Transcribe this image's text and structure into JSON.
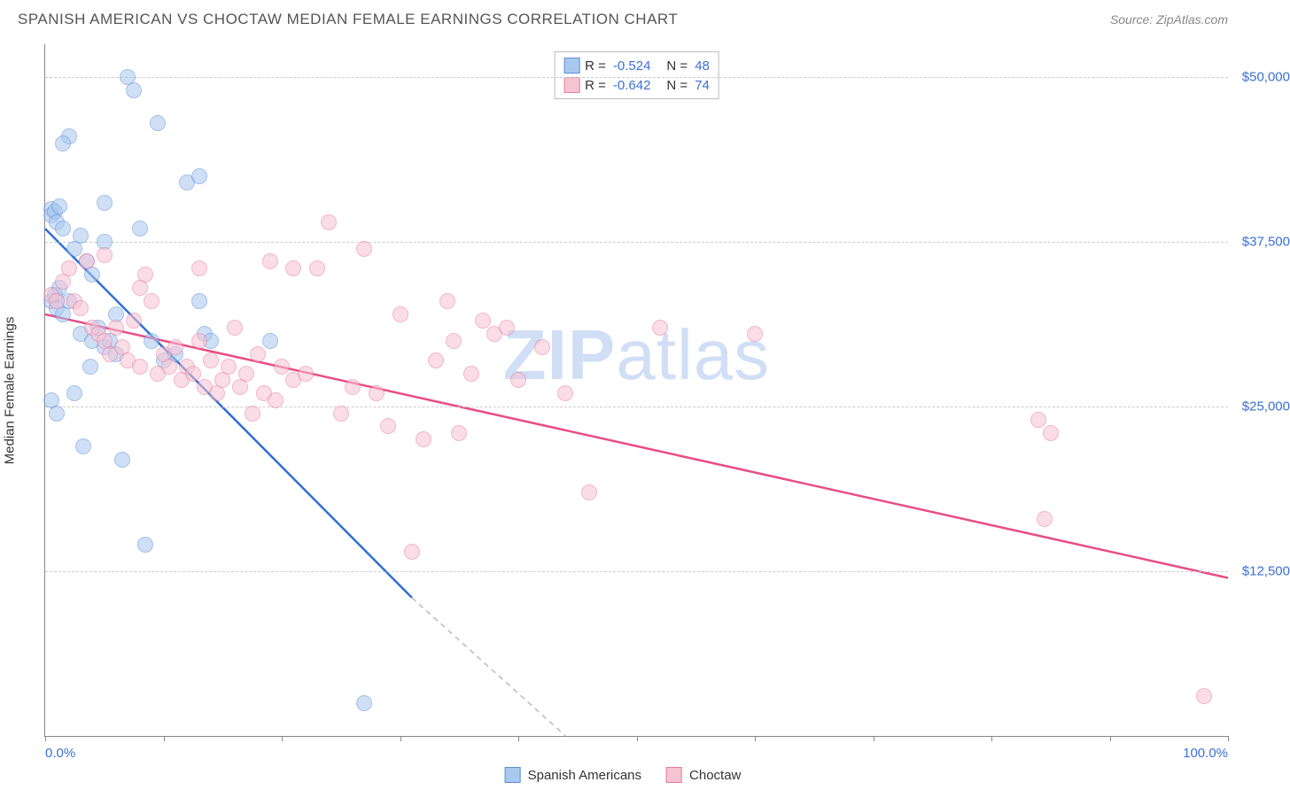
{
  "header": {
    "title": "SPANISH AMERICAN VS CHOCTAW MEDIAN FEMALE EARNINGS CORRELATION CHART",
    "source": "Source: ZipAtlas.com"
  },
  "watermark": {
    "bold": "ZIP",
    "rest": "atlas"
  },
  "chart": {
    "type": "scatter",
    "y_axis": {
      "title": "Median Female Earnings",
      "min": 0,
      "max": 52500,
      "ticks": [
        12500,
        25000,
        37500,
        50000
      ],
      "tick_labels": [
        "$12,500",
        "$25,000",
        "$37,500",
        "$50,000"
      ],
      "label_color": "#3b6fd6",
      "label_fontsize": 15
    },
    "x_axis": {
      "min": 0,
      "max": 100,
      "tick_positions": [
        0,
        10,
        20,
        30,
        40,
        50,
        60,
        70,
        80,
        90,
        100
      ],
      "left_label": "0.0%",
      "right_label": "100.0%",
      "label_color": "#3b6fd6"
    },
    "grid_color": "#cccccc",
    "background_color": "#ffffff",
    "point_radius": 9,
    "point_opacity": 0.55,
    "series": [
      {
        "name": "Spanish Americans",
        "color_fill": "#a9c8f0",
        "color_stroke": "#5a8fd6",
        "R": "-0.524",
        "N": "48",
        "trend": {
          "x1": 0,
          "y1": 38500,
          "x2": 31,
          "y2": 10500,
          "x2_ext": 44,
          "y2_ext": 0,
          "color": "#2e6fd6",
          "width": 2.5
        },
        "points": [
          [
            0.5,
            40000
          ],
          [
            0.5,
            39500
          ],
          [
            0.8,
            39800
          ],
          [
            1,
            39000
          ],
          [
            1.2,
            40200
          ],
          [
            1.5,
            38500
          ],
          [
            0.5,
            33000
          ],
          [
            0.8,
            33500
          ],
          [
            1,
            32500
          ],
          [
            1.2,
            34000
          ],
          [
            1.5,
            32000
          ],
          [
            2,
            33000
          ],
          [
            2,
            45500
          ],
          [
            2.5,
            37000
          ],
          [
            3,
            38000
          ],
          [
            3,
            30500
          ],
          [
            3.5,
            36000
          ],
          [
            4,
            30000
          ],
          [
            4,
            35000
          ],
          [
            4.5,
            31000
          ],
          [
            5,
            37500
          ],
          [
            5,
            29500
          ],
          [
            5.5,
            30000
          ],
          [
            6,
            32000
          ],
          [
            6,
            29000
          ],
          [
            6.5,
            21000
          ],
          [
            7,
            50000
          ],
          [
            7.5,
            49000
          ],
          [
            8,
            38500
          ],
          [
            8.5,
            14500
          ],
          [
            9,
            30000
          ],
          [
            9.5,
            46500
          ],
          [
            10,
            28500
          ],
          [
            11,
            29000
          ],
          [
            12,
            42000
          ],
          [
            13,
            42500
          ],
          [
            13,
            33000
          ],
          [
            13.5,
            30500
          ],
          [
            14,
            30000
          ],
          [
            0.5,
            25500
          ],
          [
            1,
            24500
          ],
          [
            2.5,
            26000
          ],
          [
            1.5,
            45000
          ],
          [
            3.2,
            22000
          ],
          [
            5,
            40500
          ],
          [
            3.8,
            28000
          ],
          [
            27,
            2500
          ],
          [
            19,
            30000
          ]
        ]
      },
      {
        "name": "Choctaw",
        "color_fill": "#f6c3d2",
        "color_stroke": "#e87ba0",
        "R": "-0.642",
        "N": "74",
        "trend": {
          "x1": 0,
          "y1": 32000,
          "x2": 100,
          "y2": 12000,
          "color": "#e84d86",
          "width": 2.5
        },
        "points": [
          [
            0.5,
            33500
          ],
          [
            1,
            33000
          ],
          [
            1.5,
            34500
          ],
          [
            2,
            35500
          ],
          [
            2.5,
            33000
          ],
          [
            3,
            32500
          ],
          [
            3.5,
            36000
          ],
          [
            4,
            31000
          ],
          [
            4.5,
            30500
          ],
          [
            5,
            30000
          ],
          [
            5.5,
            29000
          ],
          [
            6,
            31000
          ],
          [
            6.5,
            29500
          ],
          [
            7,
            28500
          ],
          [
            7.5,
            31500
          ],
          [
            8,
            28000
          ],
          [
            8.5,
            35000
          ],
          [
            9,
            33000
          ],
          [
            9.5,
            27500
          ],
          [
            10,
            29000
          ],
          [
            10.5,
            28000
          ],
          [
            11,
            29500
          ],
          [
            11.5,
            27000
          ],
          [
            12,
            28000
          ],
          [
            12.5,
            27500
          ],
          [
            13,
            30000
          ],
          [
            13.5,
            26500
          ],
          [
            14,
            28500
          ],
          [
            14.5,
            26000
          ],
          [
            15,
            27000
          ],
          [
            15.5,
            28000
          ],
          [
            16,
            31000
          ],
          [
            16.5,
            26500
          ],
          [
            17,
            27500
          ],
          [
            17.5,
            24500
          ],
          [
            18,
            29000
          ],
          [
            18.5,
            26000
          ],
          [
            19,
            36000
          ],
          [
            19.5,
            25500
          ],
          [
            20,
            28000
          ],
          [
            21,
            27000
          ],
          [
            22,
            27500
          ],
          [
            23,
            35500
          ],
          [
            24,
            39000
          ],
          [
            25,
            24500
          ],
          [
            26,
            26500
          ],
          [
            27,
            37000
          ],
          [
            28,
            26000
          ],
          [
            29,
            23500
          ],
          [
            30,
            32000
          ],
          [
            31,
            14000
          ],
          [
            32,
            22500
          ],
          [
            33,
            28500
          ],
          [
            34,
            33000
          ],
          [
            34.5,
            30000
          ],
          [
            35,
            23000
          ],
          [
            36,
            27500
          ],
          [
            37,
            31500
          ],
          [
            38,
            30500
          ],
          [
            39,
            31000
          ],
          [
            40,
            27000
          ],
          [
            42,
            29500
          ],
          [
            44,
            26000
          ],
          [
            46,
            18500
          ],
          [
            52,
            31000
          ],
          [
            60,
            30500
          ],
          [
            84,
            24000
          ],
          [
            85,
            23000
          ],
          [
            84.5,
            16500
          ],
          [
            98,
            3000
          ],
          [
            13,
            35500
          ],
          [
            8,
            34000
          ],
          [
            21,
            35500
          ],
          [
            5,
            36500
          ]
        ]
      }
    ],
    "legend_bottom": [
      {
        "label": "Spanish Americans",
        "fill": "#a9c8f0",
        "stroke": "#5a8fd6"
      },
      {
        "label": "Choctaw",
        "fill": "#f6c3d2",
        "stroke": "#e87ba0"
      }
    ]
  }
}
